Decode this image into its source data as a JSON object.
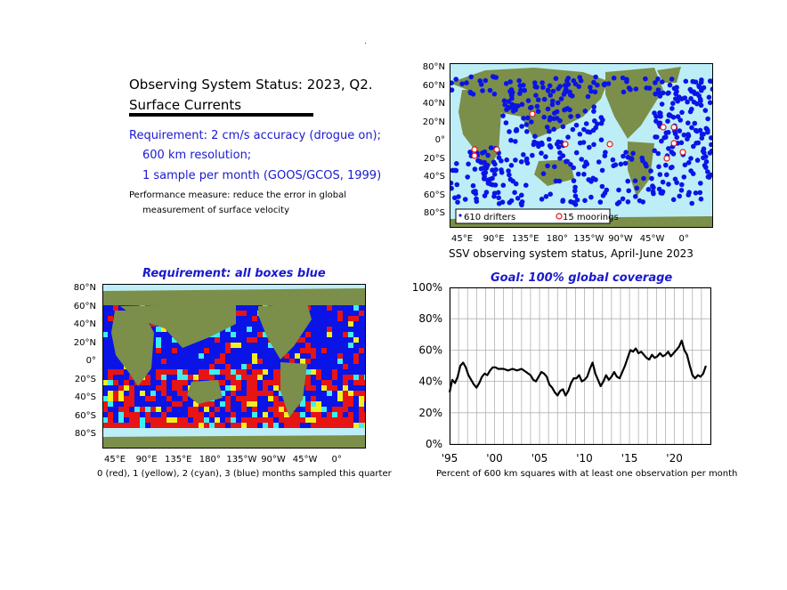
{
  "header": {
    "title": "Observing System Status: 2023, Q2.",
    "subtitle": "Surface Currents",
    "requirement_line1": "Requirement: 2 cm/s accuracy (drogue on);",
    "requirement_line2": "600 km resolution;",
    "requirement_line3": "1 sample per month (GOOS/GCOS, 1999)",
    "performance_line1": "Performance measure: reduce the error in global",
    "performance_line2": "measurement of surface velocity"
  },
  "colors": {
    "blue": "#0a14e6",
    "red": "#e61414",
    "yellow": "#f0f01e",
    "cyan": "#3cf0f0",
    "ocean": "#bdeef7",
    "land": "#7b8f4a",
    "mooring": "#e61414",
    "title_blue": "#1a1acd"
  },
  "map_axes": {
    "lat_labels": [
      "80°N",
      "60°N",
      "40°N",
      "20°N",
      "0°",
      "20°S",
      "40°S",
      "60°S",
      "80°S"
    ],
    "lon_labels": [
      "45°E",
      "90°E",
      "135°E",
      "180°",
      "135°W",
      "90°W",
      "45°W",
      "0°"
    ]
  },
  "ssv_map": {
    "caption": "SSV observing system status, April-June 2023",
    "legend_drifters": "610 drifters",
    "legend_moorings": "15 moorings"
  },
  "requirement_map": {
    "title": "Requirement: all boxes blue",
    "caption": "0 (red), 1 (yellow), 2 (cyan), 3 (blue) months sampled this quarter"
  },
  "chart_data": {
    "type": "line",
    "title": "Goal: 100% global coverage",
    "xlabel": "Percent of 600 km squares with at least one observation per month",
    "ylabel": "",
    "x_tick_labels": [
      "'95",
      "'00",
      "'05",
      "'10",
      "'15",
      "'20"
    ],
    "y_tick_labels": [
      "0%",
      "20%",
      "40%",
      "60%",
      "80%",
      "100%"
    ],
    "xlim": [
      1995,
      2024
    ],
    "ylim": [
      0,
      100
    ],
    "grid": true,
    "series": [
      {
        "x": [
          1995.0,
          1995.3,
          1995.6,
          1995.9,
          1996.2,
          1996.5,
          1996.8,
          1997.1,
          1997.4,
          1997.7,
          1998.0,
          1998.3,
          1998.6,
          1998.9,
          1999.2,
          1999.5,
          1999.8,
          2000.1,
          2000.4,
          2000.7,
          2001.0,
          2001.5,
          2002.0,
          2002.5,
          2003.0,
          2003.5,
          2004.0,
          2004.3,
          2004.6,
          2004.9,
          2005.2,
          2005.5,
          2005.8,
          2006.1,
          2006.4,
          2006.7,
          2007.0,
          2007.3,
          2007.6,
          2007.9,
          2008.2,
          2008.5,
          2008.8,
          2009.1,
          2009.4,
          2009.7,
          2010.0,
          2010.3,
          2010.6,
          2010.9,
          2011.2,
          2011.5,
          2011.8,
          2012.1,
          2012.4,
          2012.7,
          2013.0,
          2013.3,
          2013.6,
          2013.9,
          2014.2,
          2014.5,
          2014.8,
          2015.1,
          2015.4,
          2015.7,
          2016.0,
          2016.3,
          2016.6,
          2016.9,
          2017.2,
          2017.5,
          2017.8,
          2018.1,
          2018.4,
          2018.7,
          2019.0,
          2019.3,
          2019.6,
          2019.9,
          2020.2,
          2020.5,
          2020.8,
          2021.1,
          2021.4,
          2021.7,
          2022.0,
          2022.3,
          2022.6,
          2022.9,
          2023.2,
          2023.5
        ],
        "y": [
          33,
          41,
          39,
          43,
          50,
          52,
          49,
          44,
          41,
          38,
          36,
          39,
          43,
          45,
          44,
          47,
          49,
          49,
          48,
          48,
          48,
          47,
          48,
          47,
          48,
          46,
          44,
          41,
          40,
          43,
          46,
          45,
          43,
          38,
          36,
          33,
          31,
          34,
          35,
          31,
          34,
          39,
          42,
          42,
          44,
          40,
          41,
          43,
          48,
          52,
          45,
          41,
          37,
          40,
          44,
          41,
          43,
          46,
          43,
          42,
          46,
          50,
          55,
          60,
          59,
          61,
          58,
          59,
          57,
          55,
          54,
          57,
          55,
          56,
          58,
          56,
          57,
          59,
          56,
          58,
          60,
          62,
          66,
          60,
          57,
          50,
          44,
          42,
          44,
          43,
          45,
          50
        ]
      }
    ]
  }
}
